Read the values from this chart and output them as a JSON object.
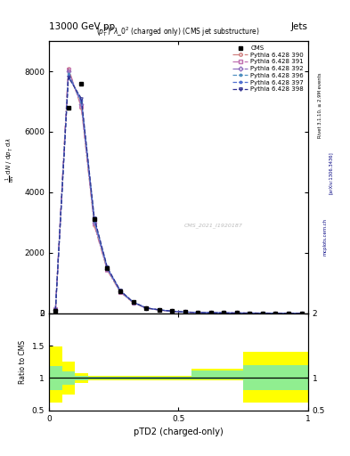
{
  "title_top": "13000 GeV pp",
  "title_right": "Jets",
  "plot_title": "$(p_T^D)^2\\lambda\\_0^2$ (charged only) (CMS jet substructure)",
  "xlabel": "pTD2 (charged-only)",
  "ylabel_main": "1 / mathrmN d/mathrm d$p_T$ mathrmN d/mathrm d$\\lambda$",
  "ylabel_ratio": "Ratio to CMS",
  "watermark": "CMS_2021_I1920187",
  "rivet_label": "Rivet 3.1.10, ≥ 2.9M events",
  "arxiv": "[arXiv:1306.3436]",
  "mcplots": "mcplots.cern.ch",
  "x_data": [
    0.025,
    0.075,
    0.125,
    0.175,
    0.225,
    0.275,
    0.325,
    0.375,
    0.425,
    0.475,
    0.525,
    0.575,
    0.625,
    0.675,
    0.725,
    0.775,
    0.825,
    0.875,
    0.925,
    0.975
  ],
  "cms_y": [
    80,
    6800,
    7600,
    3100,
    1500,
    720,
    360,
    175,
    110,
    65,
    38,
    22,
    14,
    9,
    5.5,
    3.5,
    2.0,
    1.2,
    0.7,
    0.4
  ],
  "py390_y": [
    130,
    8100,
    6800,
    2900,
    1420,
    700,
    345,
    165,
    105,
    62,
    36,
    21,
    13,
    8,
    5,
    3,
    1.8,
    1.0,
    0.6,
    0.3
  ],
  "py391_y": [
    125,
    8050,
    6850,
    2950,
    1440,
    710,
    350,
    168,
    107,
    63,
    37,
    21.5,
    13.5,
    8.5,
    5.2,
    3.2,
    1.9,
    1.1,
    0.65,
    0.32
  ],
  "py392_y": [
    120,
    8000,
    6900,
    3000,
    1460,
    720,
    355,
    170,
    108,
    64,
    37.5,
    22,
    14,
    9,
    5.5,
    3.5,
    2.1,
    1.2,
    0.7,
    0.35
  ],
  "py396_y": [
    115,
    7900,
    7000,
    3050,
    1480,
    730,
    360,
    172,
    110,
    65,
    38,
    22.5,
    14.5,
    9.5,
    5.8,
    3.8,
    2.3,
    1.3,
    0.75,
    0.38
  ],
  "py397_y": [
    118,
    7850,
    7050,
    3100,
    1500,
    740,
    365,
    174,
    111,
    66,
    38.5,
    23,
    15,
    10,
    6,
    4,
    2.4,
    1.4,
    0.8,
    0.4
  ],
  "py398_y": [
    100,
    7800,
    7100,
    3150,
    1520,
    750,
    370,
    176,
    112,
    67,
    39,
    23.5,
    15.5,
    10.5,
    6.2,
    4.2,
    2.6,
    1.5,
    0.85,
    0.42
  ],
  "ylim_main": [
    0,
    9000
  ],
  "ylim_ratio": [
    0.5,
    2.0
  ],
  "ratio_x": [
    0.0,
    0.1,
    0.2,
    0.3,
    0.4,
    0.5,
    0.6,
    0.7,
    0.75,
    0.8,
    1.0
  ],
  "ratio_yellow_lo": [
    0.62,
    0.85,
    0.95,
    0.97,
    0.97,
    0.97,
    1.1,
    1.08,
    0.65,
    0.65,
    0.65
  ],
  "ratio_yellow_hi": [
    1.48,
    1.15,
    1.05,
    1.03,
    1.03,
    1.13,
    1.25,
    1.28,
    1.4,
    1.4,
    1.4
  ],
  "ratio_green_lo": [
    0.82,
    0.93,
    0.98,
    0.99,
    0.99,
    0.99,
    1.1,
    1.08,
    0.82,
    0.82,
    0.82
  ],
  "ratio_green_hi": [
    1.18,
    1.07,
    1.02,
    1.01,
    1.01,
    1.13,
    1.2,
    1.22,
    1.2,
    1.2,
    1.2
  ],
  "colors": {
    "py390": "#d08080",
    "py391": "#c070b0",
    "py392": "#9070c0",
    "py396": "#5090c0",
    "py397": "#5070d0",
    "py398": "#303090"
  }
}
